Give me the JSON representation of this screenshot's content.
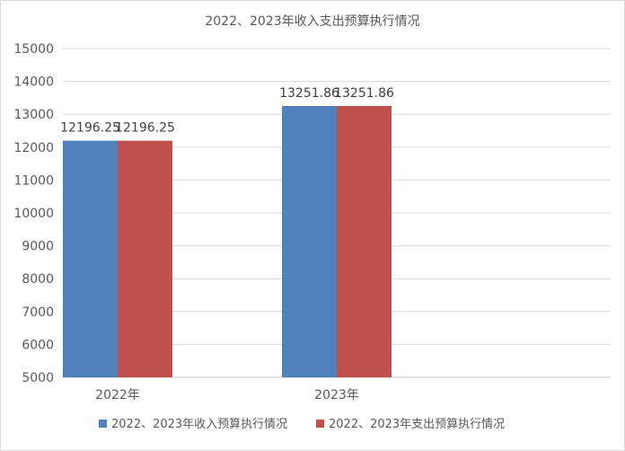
{
  "chart_data": {
    "type": "bar",
    "title": "2022、2023年收入支出预算执行情况",
    "categories": [
      "2022年",
      "2023年"
    ],
    "series": [
      {
        "name": "2022、2023年收入预算执行情况",
        "values": [
          12196.25,
          13251.86
        ],
        "color": "#4f81bd"
      },
      {
        "name": "2022、2023年支出预算执行情况",
        "values": [
          12196.25,
          13251.86
        ],
        "color": "#c0504d"
      }
    ],
    "data_labels": [
      [
        "12196.25",
        "13251.86"
      ],
      [
        "12196.25",
        "13251.86"
      ]
    ],
    "ylim": [
      5000,
      15000
    ],
    "yticks": [
      5000,
      6000,
      7000,
      8000,
      9000,
      10000,
      11000,
      12000,
      13000,
      14000,
      15000
    ],
    "grid": true,
    "legend_position": "bottom",
    "xlabel": "",
    "ylabel": ""
  }
}
